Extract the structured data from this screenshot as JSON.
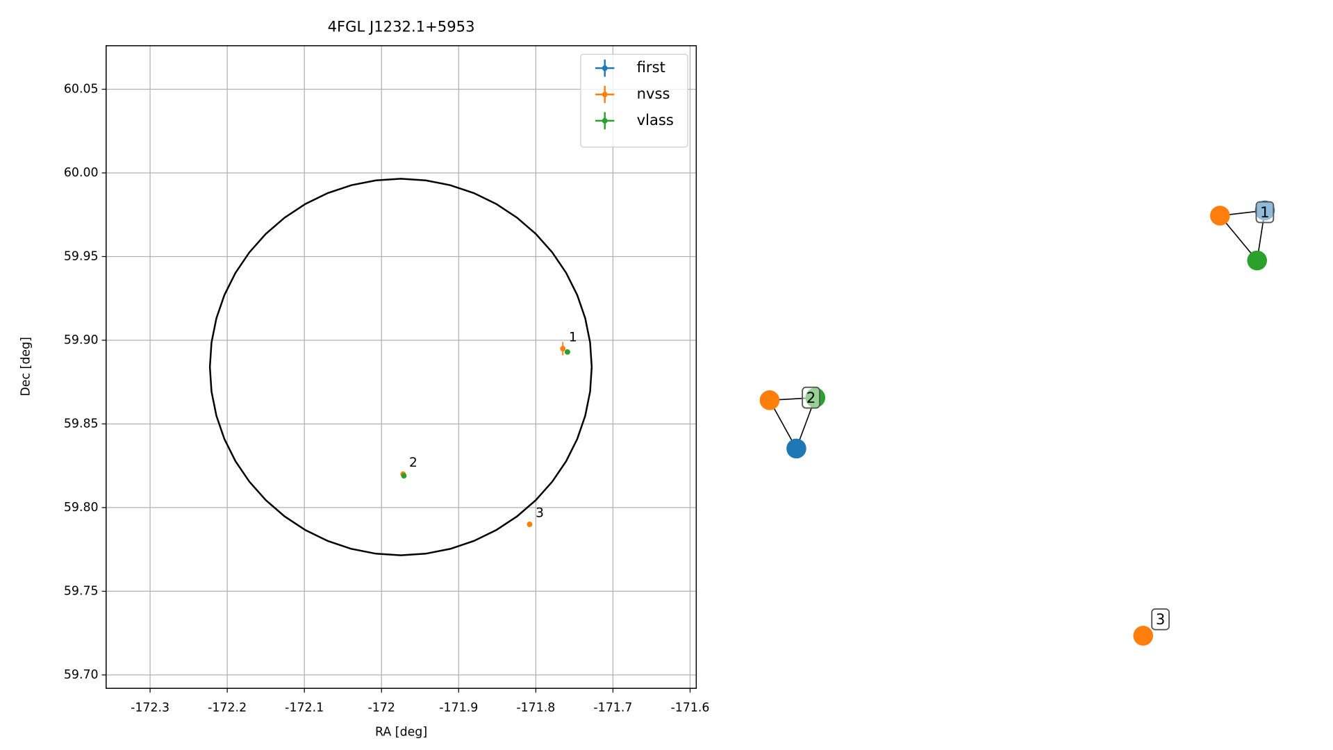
{
  "chart_data": [
    {
      "type": "scatter",
      "title": "4FGL J1232.1+5953",
      "x_label": "RA [deg]",
      "y_label": "Dec [deg]",
      "xlim": [
        -172.357,
        -171.592
      ],
      "ylim": [
        59.692,
        60.076
      ],
      "xticks": [
        -172.3,
        -172.2,
        -172.1,
        -172.0,
        -171.9,
        -171.8,
        -171.7,
        -171.6
      ],
      "yticks": [
        {
          "value": 59.7,
          "label": "59.70"
        },
        {
          "value": 59.75,
          "label": "59.75"
        },
        {
          "value": 59.8,
          "label": "59.80"
        },
        {
          "value": 59.85,
          "label": "59.85"
        },
        {
          "value": 59.9,
          "label": "59.90"
        },
        {
          "value": 59.95,
          "label": "59.95"
        },
        {
          "value": 60.0,
          "label": "60.00"
        },
        {
          "value": 60.05,
          "label": "60.05"
        }
      ],
      "grid": true,
      "legend": "upper right",
      "ellipse": {
        "x": -171.975,
        "y": 59.884,
        "rx": 0.2475,
        "ry": 0.1125,
        "color": "#000000"
      },
      "series": [
        {
          "name": "first",
          "color": "#1f77b4",
          "x": [],
          "y": []
        },
        {
          "name": "nvss",
          "color": "#ff7f0e",
          "x": [
            -171.765,
            -171.972,
            -171.808
          ],
          "y": [
            59.895,
            59.82,
            59.79
          ],
          "xerr": [
            0.002,
            0.001,
            0.001
          ],
          "yerr": [
            0.004,
            0.001,
            0.001
          ],
          "point_labels": [
            "1",
            "2",
            "3"
          ]
        },
        {
          "name": "vlass",
          "color": "#2ca02c",
          "x": [
            -171.759,
            -171.971
          ],
          "y": [
            59.893,
            59.819
          ]
        }
      ]
    },
    {
      "type": "network",
      "nodes": [
        {
          "color": "#1f77b4"
        },
        {
          "color": "#ff7f0e"
        },
        {
          "color": "#2ca02c"
        },
        {
          "color": "#2ca02c"
        },
        {
          "color": "#ff7f0e"
        },
        {
          "color": "#1f77b4"
        },
        {
          "color": "#ff7f0e"
        }
      ],
      "edges": [
        [
          1,
          0
        ],
        [
          0,
          2
        ],
        [
          1,
          2
        ],
        [
          4,
          3
        ],
        [
          3,
          5
        ],
        [
          4,
          5
        ]
      ],
      "labels": [
        "1",
        "2",
        "3"
      ]
    }
  ]
}
